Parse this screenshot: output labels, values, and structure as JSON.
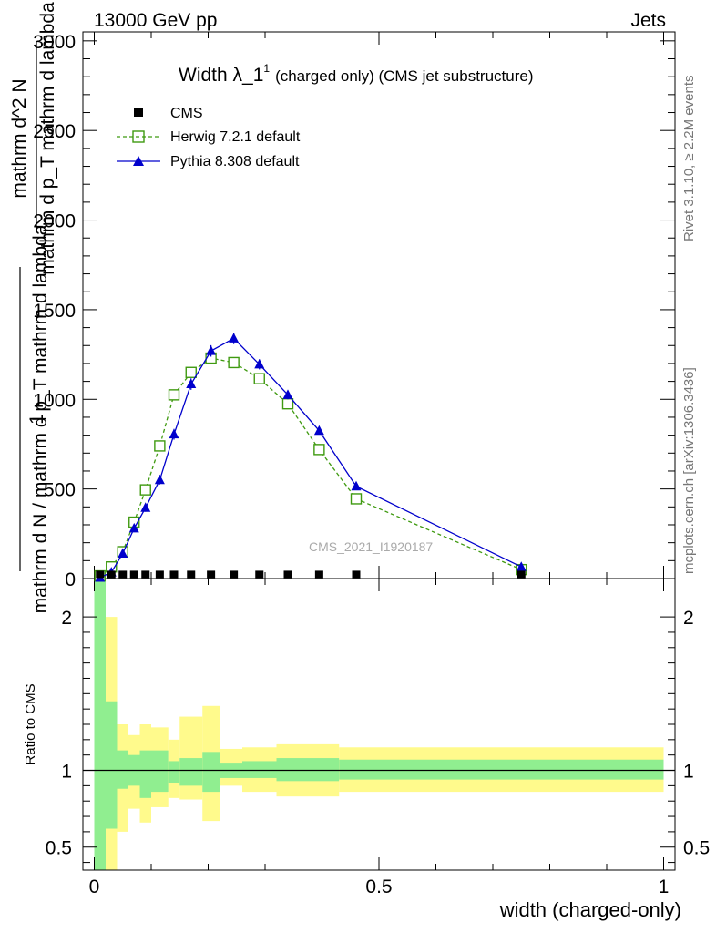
{
  "header": {
    "energy_label": "13000 GeV pp",
    "category_label": "Jets"
  },
  "side": {
    "rivet_label": "Rivet 3.1.10, ≥ 2.2M events",
    "mcplots_label": "mcplots.cern.ch [arXiv:1306.3436]"
  },
  "watermark": "CMS_2021_I1920187",
  "chart_data": [
    {
      "type": "line",
      "panel": "main",
      "title": "Width λ_1",
      "title_superscript": "1",
      "subtitle": "(charged only) (CMS jet substructure)",
      "ylabel_parts": [
        "1",
        "mathrm d N / mathrm d p_T mathrm d lambda",
        "mathrm d^2 N",
        "mathrm d p_T mathrm d lambda"
      ],
      "xlim": [
        -0.02,
        1.02
      ],
      "ylim": [
        0,
        3050
      ],
      "y_ticks": [
        0,
        500,
        1000,
        1500,
        2000,
        2500,
        3000
      ],
      "y_tick_labels": [
        "0",
        "500",
        "1000",
        "1500",
        "2000",
        "2500",
        "3000"
      ],
      "legend_position": "top-left",
      "legend": [
        "CMS",
        "Herwig 7.2.1 default",
        "Pythia 8.308 default"
      ],
      "colors": {
        "data": "#000000",
        "herwig": "#3f9a10",
        "pythia": "#0000cc"
      },
      "series": [
        {
          "name": "CMS",
          "style": "marker",
          "x": [
            0.01,
            0.03,
            0.05,
            0.07,
            0.09,
            0.115,
            0.14,
            0.17,
            0.205,
            0.245,
            0.29,
            0.34,
            0.395,
            0.46,
            0.75
          ],
          "y": [
            3,
            3,
            3,
            3,
            3,
            3,
            3,
            3,
            3,
            3,
            3,
            3,
            3,
            3,
            3
          ]
        },
        {
          "name": "Herwig 7.2.1 default",
          "style": "dashed",
          "x": [
            0.01,
            0.03,
            0.05,
            0.07,
            0.09,
            0.115,
            0.14,
            0.17,
            0.205,
            0.245,
            0.29,
            0.34,
            0.395,
            0.46,
            0.75
          ],
          "y": [
            15,
            65,
            150,
            315,
            495,
            740,
            1025,
            1150,
            1230,
            1205,
            1115,
            975,
            720,
            445,
            50
          ],
          "err": [
            8,
            15,
            18,
            22,
            25,
            28,
            30,
            28,
            28,
            28,
            25,
            22,
            18,
            12,
            4
          ]
        },
        {
          "name": "Pythia 8.308 default",
          "style": "solid",
          "x": [
            0.01,
            0.03,
            0.05,
            0.07,
            0.09,
            0.115,
            0.14,
            0.17,
            0.205,
            0.245,
            0.29,
            0.34,
            0.395,
            0.46,
            0.75
          ],
          "y": [
            5,
            35,
            140,
            280,
            395,
            550,
            805,
            1085,
            1270,
            1340,
            1195,
            1025,
            825,
            515,
            65
          ],
          "err": [
            4,
            10,
            15,
            18,
            22,
            25,
            30,
            32,
            32,
            32,
            28,
            25,
            20,
            14,
            4
          ]
        }
      ]
    },
    {
      "type": "area",
      "panel": "ratio",
      "ylabel": "Ratio to CMS",
      "xlabel": "width (charged-only)",
      "xlim": [
        -0.02,
        1.02
      ],
      "ylim": [
        0.35,
        2.25
      ],
      "y_ticks": [
        0.5,
        1,
        2
      ],
      "y_tick_labels": [
        "0.5",
        "1",
        "2"
      ],
      "x_ticks": [
        0,
        0.5,
        1
      ],
      "x_tick_labels": [
        "0",
        "0.5",
        "1"
      ],
      "reference_line": 1,
      "colors": {
        "stat_band": "#90ee90",
        "total_band": "#fffa8c",
        "reference": "#000000"
      },
      "bins": [
        0,
        0.02,
        0.04,
        0.06,
        0.08,
        0.1,
        0.13,
        0.15,
        0.19,
        0.22,
        0.26,
        0.32,
        0.36,
        0.43,
        1.0
      ],
      "band_inner_low": [
        0.2,
        0.62,
        0.88,
        0.9,
        0.82,
        0.86,
        0.92,
        0.9,
        0.86,
        0.95,
        0.95,
        0.93,
        0.93,
        0.94
      ],
      "band_inner_high": [
        2.3,
        1.45,
        1.13,
        1.1,
        1.13,
        1.13,
        1.06,
        1.08,
        1.12,
        1.05,
        1.06,
        1.08,
        1.08,
        1.07
      ],
      "band_outer_low": [
        0.2,
        0.35,
        0.6,
        0.75,
        0.66,
        0.76,
        0.82,
        0.81,
        0.67,
        0.9,
        0.86,
        0.83,
        0.83,
        0.86
      ],
      "band_outer_high": [
        2.3,
        2.0,
        1.3,
        1.23,
        1.3,
        1.28,
        1.2,
        1.35,
        1.42,
        1.14,
        1.15,
        1.17,
        1.17,
        1.15
      ]
    }
  ]
}
